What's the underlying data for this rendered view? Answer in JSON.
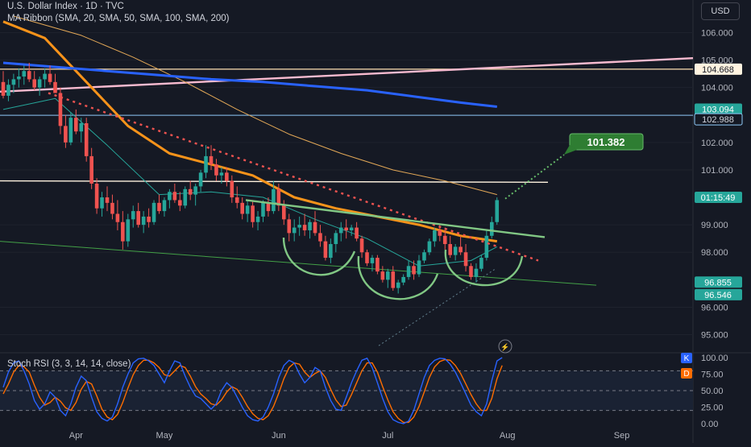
{
  "header": {
    "symbol_line": "U.S. Dollar Index · 1D · TVC",
    "ma_line": "MA Ribbon (SMA, 20, SMA, 50, SMA, 100, SMA, 200)",
    "currency_button": "USD"
  },
  "colors": {
    "background": "#151924",
    "up": "#26a69a",
    "down": "#ef5350",
    "sma20": "#26a69a",
    "sma50": "#f7931a",
    "sma100": "#e3a857",
    "sma200": "#2962ff",
    "level_line": "#fff3e0",
    "green_pattern": "#81c784",
    "pink_trend": "#f8bbd0",
    "red_dotted": "#ef5350",
    "stoch_k": "#2962ff",
    "stoch_d": "#ff6d00"
  },
  "chart_data": {
    "type": "candlestick",
    "x_ticks": [
      "Apr",
      "May",
      "Jun",
      "Jul",
      "Aug",
      "Sep"
    ],
    "y_ticks": [
      "106.000",
      "105.000",
      "104.000",
      "102.000",
      "101.000",
      "99.000",
      "98.000",
      "96.000",
      "95.000"
    ],
    "ylim": [
      94.4,
      106.6
    ],
    "price_labels": [
      {
        "value": 104.668,
        "text": "104.668",
        "kind": "light"
      },
      {
        "value": 103.094,
        "text": "103.094",
        "kind": "green"
      },
      {
        "value": 102.988,
        "text": "102.988",
        "kind": "dark"
      },
      {
        "value": 100.0,
        "text": "01:15:49",
        "kind": "green"
      },
      {
        "value": 96.855,
        "text": "96.855",
        "kind": "green"
      },
      {
        "value": 96.546,
        "text": "96.546",
        "kind": "green"
      }
    ],
    "target_label": "101.382",
    "candles": [
      [
        104.2,
        104.6,
        103.6,
        103.7
      ],
      [
        103.7,
        104.3,
        103.5,
        104.1
      ],
      [
        104.1,
        104.5,
        103.8,
        104.3
      ],
      [
        104.3,
        104.7,
        104.0,
        104.4
      ],
      [
        104.4,
        104.8,
        104.1,
        104.6
      ],
      [
        104.6,
        104.9,
        104.2,
        104.3
      ],
      [
        104.3,
        104.6,
        103.9,
        104.0
      ],
      [
        104.0,
        104.4,
        103.7,
        104.3
      ],
      [
        104.3,
        104.7,
        104.0,
        104.5
      ],
      [
        104.5,
        104.8,
        104.1,
        104.2
      ],
      [
        104.2,
        104.5,
        103.8,
        103.8
      ],
      [
        103.8,
        104.0,
        102.3,
        102.6
      ],
      [
        102.6,
        103.0,
        101.8,
        102.0
      ],
      [
        102.0,
        103.1,
        101.9,
        102.9
      ],
      [
        102.9,
        103.2,
        102.3,
        102.4
      ],
      [
        102.4,
        102.9,
        102.0,
        102.7
      ],
      [
        102.7,
        102.9,
        101.3,
        101.5
      ],
      [
        101.5,
        101.8,
        100.3,
        100.5
      ],
      [
        100.5,
        100.7,
        99.4,
        99.6
      ],
      [
        99.6,
        100.2,
        99.3,
        100.0
      ],
      [
        100.0,
        100.4,
        99.5,
        99.8
      ],
      [
        99.8,
        100.1,
        99.2,
        99.4
      ],
      [
        99.4,
        99.9,
        98.8,
        99.1
      ],
      [
        99.1,
        99.5,
        98.1,
        98.4
      ],
      [
        98.4,
        99.4,
        98.2,
        99.2
      ],
      [
        99.2,
        99.7,
        98.9,
        99.5
      ],
      [
        99.5,
        99.8,
        98.9,
        99.0
      ],
      [
        99.0,
        99.5,
        98.7,
        99.3
      ],
      [
        99.3,
        99.6,
        98.9,
        99.1
      ],
      [
        99.1,
        99.9,
        99.0,
        99.8
      ],
      [
        99.8,
        100.1,
        99.4,
        99.5
      ],
      [
        99.5,
        100.0,
        99.3,
        99.9
      ],
      [
        99.9,
        100.3,
        99.6,
        100.2
      ],
      [
        100.2,
        100.5,
        99.8,
        99.9
      ],
      [
        99.9,
        100.2,
        99.5,
        99.7
      ],
      [
        99.7,
        100.4,
        99.6,
        100.3
      ],
      [
        100.3,
        100.6,
        99.9,
        100.1
      ],
      [
        100.1,
        100.5,
        99.7,
        100.4
      ],
      [
        100.4,
        101.0,
        100.2,
        100.9
      ],
      [
        100.9,
        101.9,
        100.7,
        101.5
      ],
      [
        101.5,
        101.9,
        101.0,
        101.2
      ],
      [
        101.2,
        101.4,
        100.6,
        100.8
      ],
      [
        100.8,
        101.1,
        100.5,
        100.9
      ],
      [
        100.9,
        101.1,
        100.4,
        100.6
      ],
      [
        100.6,
        100.8,
        99.8,
        100.0
      ],
      [
        100.0,
        100.4,
        99.6,
        99.8
      ],
      [
        99.8,
        100.0,
        99.2,
        99.4
      ],
      [
        99.4,
        99.9,
        99.1,
        99.7
      ],
      [
        99.7,
        99.9,
        98.9,
        99.1
      ],
      [
        99.1,
        99.5,
        98.8,
        99.3
      ],
      [
        99.3,
        99.9,
        99.1,
        99.8
      ],
      [
        99.8,
        100.0,
        99.3,
        99.5
      ],
      [
        99.5,
        100.6,
        99.4,
        100.3
      ],
      [
        100.3,
        100.5,
        99.5,
        99.7
      ],
      [
        99.7,
        99.9,
        99.0,
        99.2
      ],
      [
        99.2,
        99.4,
        98.4,
        98.7
      ],
      [
        98.7,
        99.2,
        98.4,
        98.9
      ],
      [
        98.9,
        99.3,
        98.6,
        99.0
      ],
      [
        99.0,
        99.4,
        98.6,
        98.8
      ],
      [
        98.8,
        99.2,
        98.5,
        99.1
      ],
      [
        99.1,
        99.5,
        98.6,
        98.7
      ],
      [
        98.7,
        99.0,
        98.2,
        98.4
      ],
      [
        98.4,
        98.6,
        97.7,
        97.8
      ],
      [
        97.8,
        98.5,
        97.6,
        98.3
      ],
      [
        98.3,
        98.8,
        98.0,
        98.7
      ],
      [
        98.7,
        99.1,
        98.4,
        98.9
      ],
      [
        98.9,
        99.2,
        98.5,
        98.8
      ],
      [
        98.8,
        99.0,
        98.6,
        98.9
      ],
      [
        98.9,
        99.1,
        98.4,
        98.5
      ],
      [
        98.5,
        98.6,
        97.8,
        98.0
      ],
      [
        98.0,
        98.1,
        97.5,
        97.6
      ],
      [
        97.6,
        97.9,
        97.3,
        97.8
      ],
      [
        97.8,
        97.9,
        97.2,
        97.3
      ],
      [
        97.3,
        97.5,
        96.9,
        97.0
      ],
      [
        97.0,
        97.4,
        96.7,
        97.3
      ],
      [
        97.3,
        97.5,
        96.6,
        96.7
      ],
      [
        96.7,
        97.0,
        96.5,
        96.9
      ],
      [
        96.9,
        97.2,
        96.8,
        97.1
      ],
      [
        97.1,
        97.7,
        97.0,
        97.5
      ],
      [
        97.5,
        97.7,
        97.0,
        97.2
      ],
      [
        97.2,
        97.9,
        97.1,
        97.7
      ],
      [
        97.7,
        98.1,
        97.6,
        98.0
      ],
      [
        98.0,
        98.5,
        97.9,
        98.4
      ],
      [
        98.4,
        98.9,
        98.2,
        98.8
      ],
      [
        98.8,
        99.0,
        98.4,
        98.6
      ],
      [
        98.6,
        98.9,
        98.1,
        98.3
      ],
      [
        98.3,
        98.6,
        97.8,
        97.9
      ],
      [
        97.9,
        98.3,
        97.7,
        98.2
      ],
      [
        98.2,
        98.6,
        97.9,
        98.0
      ],
      [
        98.0,
        98.3,
        97.3,
        97.5
      ],
      [
        97.5,
        97.6,
        97.0,
        97.1
      ],
      [
        97.1,
        97.6,
        96.9,
        97.4
      ],
      [
        97.4,
        97.9,
        97.3,
        97.8
      ],
      [
        97.8,
        98.8,
        97.7,
        98.6
      ],
      [
        98.6,
        99.3,
        98.5,
        99.1
      ],
      [
        99.1,
        100.0,
        99.0,
        99.9
      ]
    ],
    "moving_averages": [
      {
        "name": "SMA 20",
        "points": [
          [
            0,
            103.2
          ],
          [
            10,
            103.6
          ],
          [
            20,
            101.9
          ],
          [
            30,
            100.1
          ],
          [
            40,
            100.2
          ],
          [
            50,
            100.0
          ],
          [
            60,
            99.2
          ],
          [
            70,
            98.5
          ],
          [
            80,
            97.5
          ],
          [
            90,
            97.7
          ],
          [
            95,
            98.2
          ]
        ]
      },
      {
        "name": "SMA 50",
        "points": [
          [
            0,
            106.4
          ],
          [
            8,
            105.8
          ],
          [
            16,
            104.2
          ],
          [
            24,
            102.6
          ],
          [
            32,
            101.6
          ],
          [
            40,
            101.2
          ],
          [
            48,
            100.8
          ],
          [
            56,
            100.0
          ],
          [
            64,
            99.6
          ],
          [
            72,
            99.3
          ],
          [
            80,
            99.0
          ],
          [
            88,
            98.6
          ],
          [
            95,
            98.4
          ]
        ]
      },
      {
        "name": "SMA 100",
        "points": [
          [
            2,
            106.6
          ],
          [
            15,
            105.9
          ],
          [
            25,
            105.1
          ],
          [
            35,
            104.2
          ],
          [
            45,
            103.2
          ],
          [
            55,
            102.3
          ],
          [
            65,
            101.6
          ],
          [
            75,
            101.0
          ],
          [
            85,
            100.6
          ],
          [
            95,
            100.1
          ]
        ]
      },
      {
        "name": "SMA 200",
        "points": [
          [
            0,
            104.9
          ],
          [
            10,
            104.75
          ],
          [
            20,
            104.6
          ],
          [
            30,
            104.45
          ],
          [
            40,
            104.3
          ],
          [
            50,
            104.2
          ],
          [
            60,
            104.05
          ],
          [
            70,
            103.9
          ],
          [
            80,
            103.65
          ],
          [
            88,
            103.45
          ],
          [
            95,
            103.3
          ]
        ]
      }
    ],
    "stoch_rsi": {
      "name": "Stoch RSI (3, 3, 14, 14, close)",
      "ticks": [
        "100.00",
        "75.00",
        "50.00",
        "25.00",
        "0.00"
      ],
      "badges": [
        "K",
        "D"
      ],
      "k": [
        55,
        78,
        92,
        95,
        80,
        60,
        35,
        22,
        30,
        48,
        40,
        20,
        12,
        30,
        55,
        72,
        65,
        40,
        18,
        8,
        4,
        10,
        30,
        55,
        75,
        92,
        98,
        99,
        95,
        88,
        75,
        62,
        80,
        95,
        92,
        72,
        55,
        42,
        38,
        30,
        22,
        30,
        50,
        62,
        55,
        40,
        25,
        12,
        6,
        4,
        10,
        25,
        45,
        70,
        88,
        96,
        92,
        75,
        62,
        70,
        85,
        80,
        55,
        35,
        22,
        20,
        40,
        62,
        80,
        96,
        99,
        85,
        62,
        38,
        18,
        6,
        2,
        0,
        4,
        20,
        45,
        70,
        88,
        96,
        99,
        98,
        90,
        78,
        62,
        45,
        28,
        18,
        12,
        30,
        65,
        95,
        100
      ],
      "d": [
        45,
        60,
        78,
        88,
        86,
        78,
        58,
        40,
        28,
        32,
        40,
        34,
        24,
        20,
        32,
        52,
        64,
        60,
        42,
        22,
        10,
        6,
        14,
        32,
        54,
        74,
        88,
        96,
        96,
        92,
        85,
        74,
        72,
        80,
        88,
        85,
        72,
        56,
        45,
        38,
        30,
        28,
        36,
        48,
        56,
        52,
        40,
        26,
        15,
        8,
        6,
        12,
        26,
        46,
        68,
        85,
        92,
        90,
        78,
        70,
        76,
        80,
        70,
        52,
        36,
        26,
        28,
        44,
        62,
        80,
        92,
        92,
        78,
        56,
        36,
        18,
        8,
        2,
        2,
        10,
        26,
        48,
        70,
        86,
        94,
        97,
        96,
        88,
        76,
        60,
        44,
        30,
        20,
        20,
        38,
        68,
        88
      ]
    }
  }
}
